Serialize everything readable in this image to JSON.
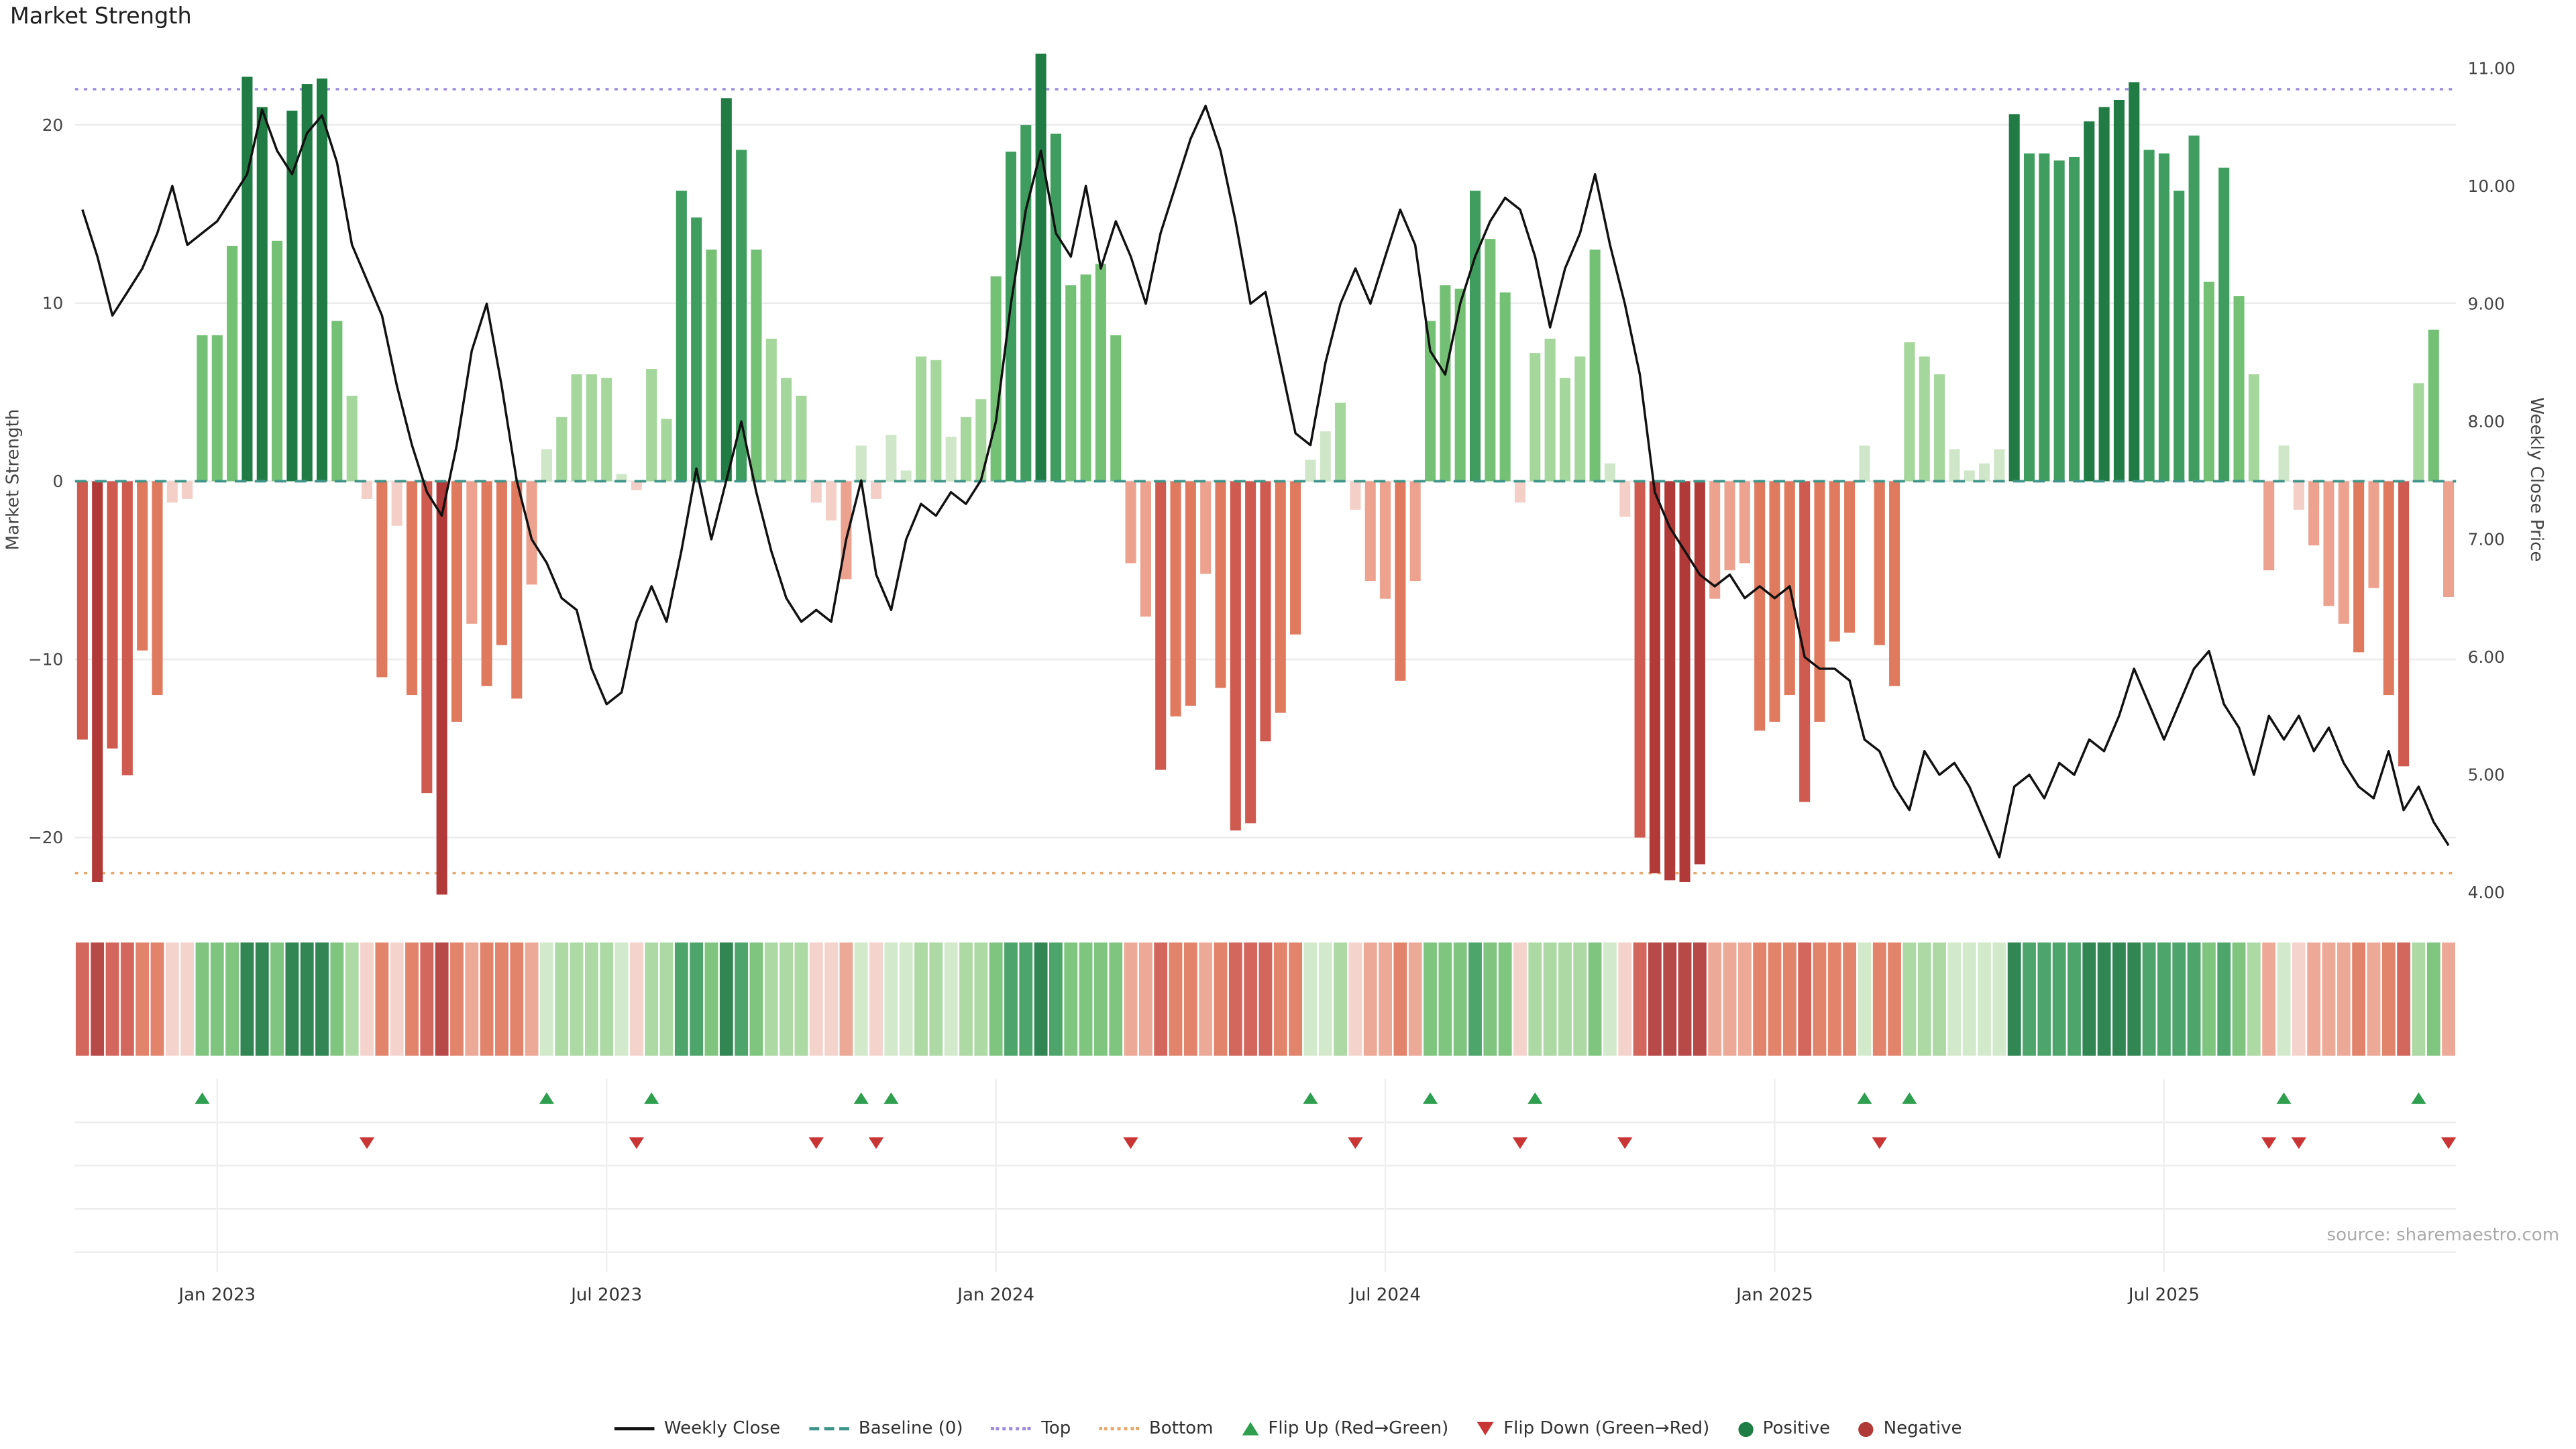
{
  "title": "Market Strength",
  "source": "source: sharemaestro.com",
  "axes": {
    "left_label": "Market Strength",
    "right_label": "Weekly Close Price",
    "left_ticks": [
      {
        "label": "−20",
        "value": -20
      },
      {
        "label": "−10",
        "value": -10
      },
      {
        "label": "0",
        "value": 0
      },
      {
        "label": "10",
        "value": 10
      },
      {
        "label": "20",
        "value": 20
      }
    ],
    "right_ticks": [
      {
        "label": "4.00",
        "value": 4
      },
      {
        "label": "5.00",
        "value": 5
      },
      {
        "label": "6.00",
        "value": 6
      },
      {
        "label": "7.00",
        "value": 7
      },
      {
        "label": "8.00",
        "value": 8
      },
      {
        "label": "9.00",
        "value": 9
      },
      {
        "label": "10.00",
        "value": 10
      },
      {
        "label": "11.00",
        "value": 11
      }
    ],
    "x_ticks": [
      {
        "label": "Jan 2023",
        "week": 9
      },
      {
        "label": "Jul 2023",
        "week": 35
      },
      {
        "label": "Jan 2024",
        "week": 61
      },
      {
        "label": "Jul 2024",
        "week": 87
      },
      {
        "label": "Jan 2025",
        "week": 113
      },
      {
        "label": "Jul 2025",
        "week": 139
      }
    ]
  },
  "chart_data": {
    "type": "bar+line",
    "x_unit": "week",
    "left_axis_range": [
      -25,
      25
    ],
    "right_axis_range": [
      4,
      11
    ],
    "reference_lines": {
      "baseline": 0,
      "top": 22,
      "bottom": -22
    },
    "series": [
      {
        "name": "Market Strength",
        "type": "bar",
        "axis": "left",
        "values": [
          -14.5,
          -22.5,
          -15,
          -16.5,
          -9.5,
          -12,
          -1.2,
          -1,
          8.2,
          8.2,
          13.2,
          22.7,
          21,
          13.5,
          20.8,
          22.3,
          22.6,
          9,
          4.8,
          -1,
          -11,
          -2.5,
          -12,
          -17.5,
          -23.2,
          -13.5,
          -8,
          -11.5,
          -9.2,
          -12.2,
          -5.8,
          1.8,
          3.6,
          6,
          6,
          5.8,
          0.4,
          -0.5,
          6.3,
          3.5,
          16.3,
          14.8,
          13,
          21.5,
          18.6,
          13,
          8,
          5.8,
          4.8,
          -1.2,
          -2.2,
          -5.5,
          2,
          -1,
          2.6,
          0.6,
          7,
          6.8,
          2.5,
          3.6,
          4.6,
          11.5,
          18.5,
          20,
          24,
          19.5,
          11,
          11.6,
          12.2,
          8.2,
          -4.6,
          -7.6,
          -16.2,
          -13.2,
          -12.6,
          -5.2,
          -11.6,
          -19.6,
          -19.2,
          -14.6,
          -13,
          -8.6,
          1.2,
          2.8,
          4.4,
          -1.6,
          -5.6,
          -6.6,
          -11.2,
          -5.6,
          9,
          11,
          10.8,
          16.3,
          13.6,
          10.6,
          -1.2,
          7.2,
          8,
          5.8,
          7,
          13,
          1,
          -2,
          -20,
          -22,
          -22.4,
          -22.5,
          -21.5,
          -6.6,
          -5,
          -4.6,
          -14,
          -13.5,
          -12,
          -18,
          -13.5,
          -9,
          -8.5,
          2,
          -9.2,
          -11.5,
          7.8,
          7,
          6,
          1.8,
          0.6,
          1,
          1.8,
          20.6,
          18.4,
          18.4,
          18,
          18.2,
          20.2,
          21,
          21.4,
          22.4,
          18.6,
          18.4,
          16.3,
          19.4,
          11.2,
          17.6,
          10.4,
          6,
          -5,
          2,
          -1.6,
          -3.6,
          -7,
          -8,
          -9.6,
          -6,
          -12,
          -16,
          5.5,
          8.5,
          -6.5
        ]
      },
      {
        "name": "Weekly Close",
        "type": "line",
        "axis": "right",
        "values": [
          9.8,
          9.4,
          8.9,
          9.1,
          9.3,
          9.6,
          10,
          9.5,
          9.6,
          9.7,
          9.9,
          10.1,
          10.65,
          10.3,
          10.1,
          10.45,
          10.6,
          10.2,
          9.5,
          9.2,
          8.9,
          8.3,
          7.8,
          7.4,
          7.2,
          7.8,
          8.6,
          9,
          8.3,
          7.5,
          7,
          6.8,
          6.5,
          6.4,
          5.9,
          5.6,
          5.7,
          6.3,
          6.6,
          6.3,
          6.9,
          7.6,
          7,
          7.5,
          8,
          7.4,
          6.9,
          6.5,
          6.3,
          6.4,
          6.3,
          7,
          7.5,
          6.7,
          6.4,
          7,
          7.3,
          7.2,
          7.4,
          7.3,
          7.5,
          8,
          9,
          9.8,
          10.3,
          9.6,
          9.4,
          10,
          9.3,
          9.7,
          9.4,
          9,
          9.6,
          10,
          10.4,
          10.68,
          10.3,
          9.7,
          9,
          9.1,
          8.5,
          7.9,
          7.8,
          8.5,
          9,
          9.3,
          9,
          9.4,
          9.8,
          9.5,
          8.6,
          8.4,
          9,
          9.4,
          9.7,
          9.9,
          9.8,
          9.4,
          8.8,
          9.3,
          9.6,
          10.1,
          9.5,
          9,
          8.4,
          7.4,
          7.1,
          6.9,
          6.7,
          6.6,
          6.7,
          6.5,
          6.6,
          6.5,
          6.6,
          6,
          5.9,
          5.9,
          5.8,
          5.3,
          5.2,
          4.9,
          4.7,
          5.2,
          5,
          5.1,
          4.9,
          4.6,
          4.3,
          4.9,
          5,
          4.8,
          5.1,
          5,
          5.3,
          5.2,
          5.5,
          5.9,
          5.6,
          5.3,
          5.6,
          5.9,
          6.05,
          5.6,
          5.4,
          5,
          5.5,
          5.3,
          5.5,
          5.2,
          5.4,
          5.1,
          4.9,
          4.8,
          5.2,
          4.7,
          4.9,
          4.6,
          4.4
        ]
      }
    ],
    "flip_up_weeks": [
      8,
      31,
      38,
      52,
      54,
      82,
      90,
      97,
      119,
      122,
      147,
      156
    ],
    "flip_down_weeks": [
      19,
      37,
      49,
      53,
      70,
      85,
      96,
      103,
      120,
      146,
      148,
      158
    ]
  },
  "legend": [
    {
      "label": "Weekly Close",
      "glyph": "line",
      "color": "#111111"
    },
    {
      "label": "Baseline (0)",
      "glyph": "dashed",
      "color": "#3f948a"
    },
    {
      "label": "Top",
      "glyph": "dotted",
      "color": "#9b8ade"
    },
    {
      "label": "Bottom",
      "glyph": "dotted",
      "color": "#e6a96d"
    },
    {
      "label": "Flip Up (Red→Green)",
      "glyph": "triangle-up",
      "color": "#2e9e4f"
    },
    {
      "label": "Flip Down (Green→Red)",
      "glyph": "triangle-down",
      "color": "#c93535"
    },
    {
      "label": "Positive",
      "glyph": "circle",
      "color": "#1e7d45"
    },
    {
      "label": "Negative",
      "glyph": "circle",
      "color": "#b03a38"
    }
  ],
  "colors": {
    "weekly_close_line": "#111111",
    "baseline": "#3f948a",
    "top_line": "#9b8ade",
    "bottom_line": "#e6a96d",
    "flip_up": "#2e9e4f",
    "flip_down": "#c93535",
    "positive_levels": [
      "#cfe7c8",
      "#a5d69c",
      "#74c075",
      "#3f9d5f",
      "#207c44"
    ],
    "negative_levels": [
      "#f3cfc8",
      "#eca28f",
      "#e07a5f",
      "#cf5a4f",
      "#b13a38"
    ],
    "level_thresholds": [
      3,
      8,
      14,
      20
    ]
  }
}
